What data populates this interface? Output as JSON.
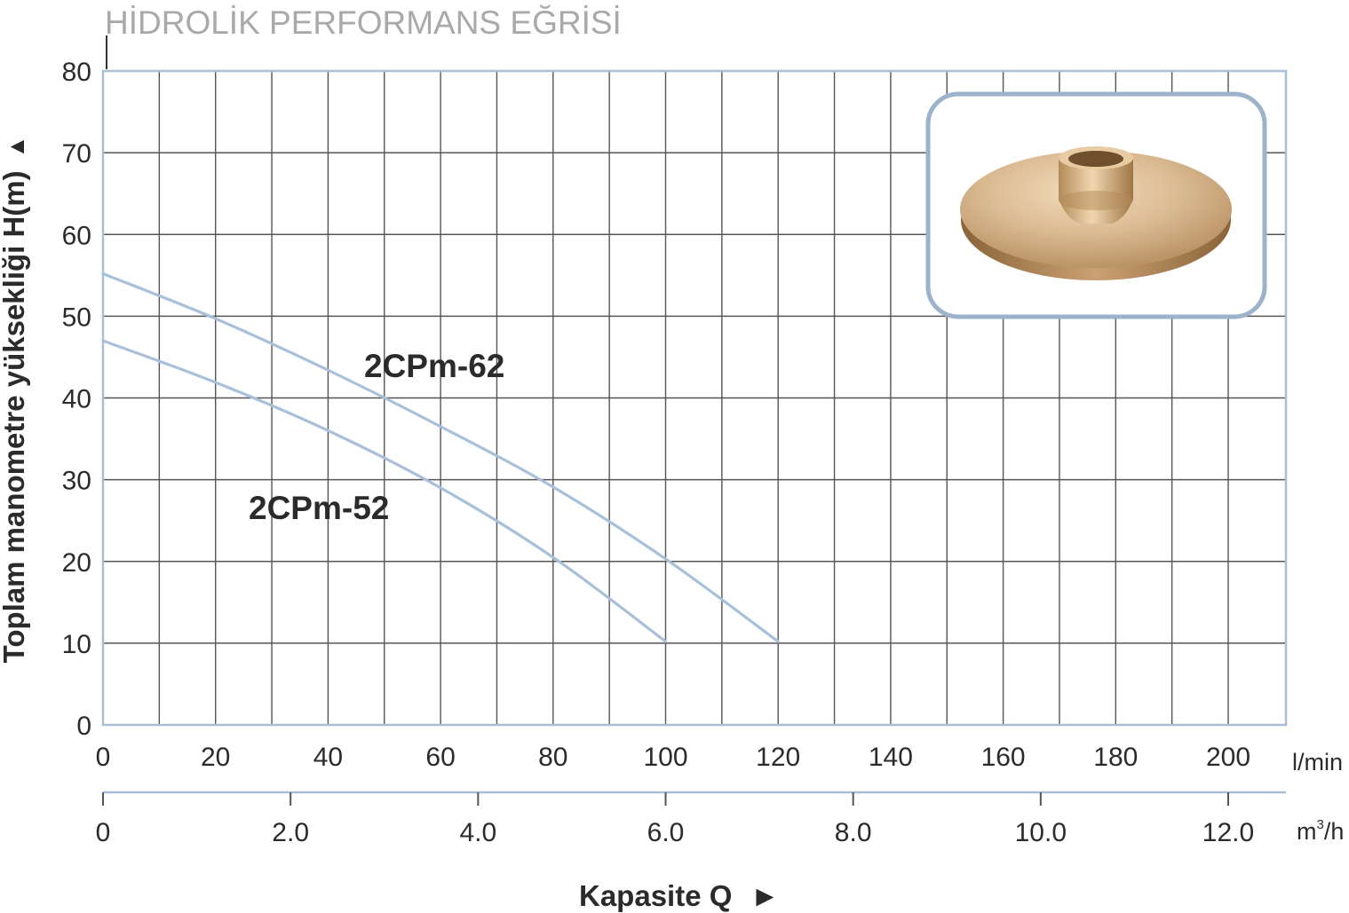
{
  "chart_data": {
    "type": "line",
    "title": "HİDROLİK PERFORMANS EĞRİSİ",
    "ylabel": "Toplam manometre yüksekliği  H(m)",
    "xlabel": "Kapasite Q",
    "x_unit": "l/min",
    "x2_unit": "m3/h",
    "y_arrow": "▲",
    "x_arrow": "►",
    "ylim": [
      0,
      80
    ],
    "xlim": [
      0,
      210
    ],
    "y_ticks": [
      "0",
      "10",
      "20",
      "30",
      "40",
      "50",
      "60",
      "70",
      "80"
    ],
    "x_ticks": [
      "0",
      "20",
      "40",
      "60",
      "80",
      "100",
      "120",
      "140",
      "160",
      "180",
      "200"
    ],
    "x2_ticks": [
      "0",
      "2.0",
      "4.0",
      "6.0",
      "8.0",
      "10.0",
      "12.0"
    ],
    "grid": true,
    "series": [
      {
        "name": "2CPm-62",
        "x": [
          0,
          20,
          40,
          60,
          80,
          100,
          120
        ],
        "y": [
          55.2,
          49.7,
          43.4,
          36.5,
          29.1,
          20.3,
          10.2
        ]
      },
      {
        "name": "2CPm-52",
        "x": [
          0,
          20,
          40,
          60,
          80,
          100
        ],
        "y": [
          47.0,
          41.9,
          36.0,
          29.0,
          20.5,
          10.2
        ]
      }
    ],
    "colors": {
      "curve": "#a8c0da",
      "grid": "#555555",
      "frame": "#a9bfd6",
      "inset_border": "#9db3cc"
    }
  }
}
